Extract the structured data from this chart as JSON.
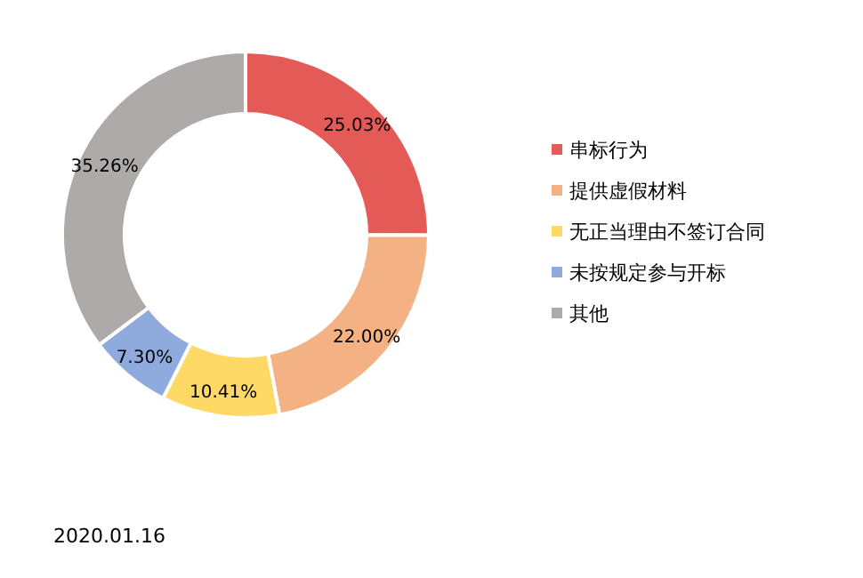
{
  "chart_data": {
    "type": "donut",
    "categories": [
      "串标行为",
      "提供虚假材料",
      "无正当理由不签订合同",
      "未按规定参与开标",
      "其他"
    ],
    "values": [
      25.03,
      22.0,
      10.41,
      7.3,
      35.26
    ],
    "colors": [
      "#e45a56",
      "#f4b183",
      "#ffd966",
      "#8faadc",
      "#aeaaaa"
    ],
    "value_labels": [
      "25.03%",
      "22.00%",
      "10.41%",
      "7.30%",
      "35.26%"
    ],
    "legend": "right",
    "annotations": [
      "2020.01.16"
    ]
  }
}
